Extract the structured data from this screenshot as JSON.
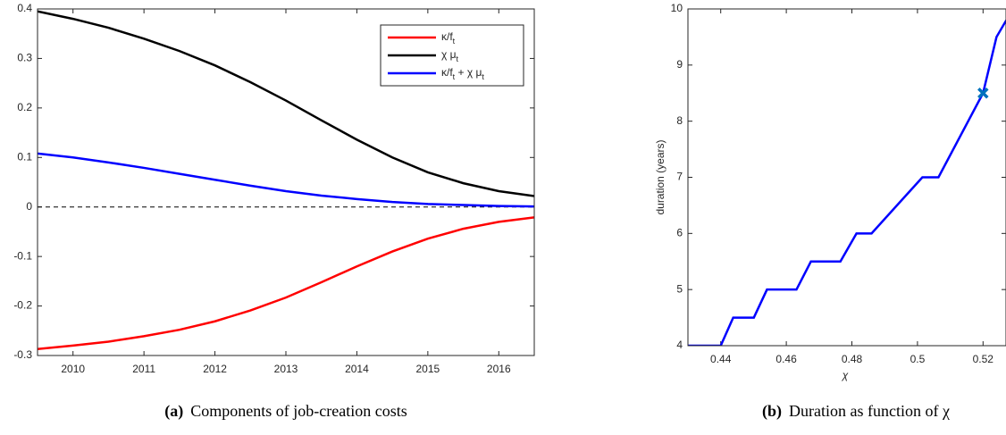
{
  "chart_data": [
    {
      "type": "line",
      "x": [
        2009.5,
        2010,
        2010.5,
        2011,
        2011.5,
        2012,
        2012.5,
        2013,
        2013.5,
        2014,
        2014.5,
        2015,
        2015.5,
        2016,
        2016.5
      ],
      "series": [
        {
          "name": "κ/f_t",
          "color": "#ff0000",
          "values": [
            -0.287,
            -0.28,
            -0.272,
            -0.261,
            -0.248,
            -0.231,
            -0.209,
            -0.183,
            -0.152,
            -0.12,
            -0.09,
            -0.064,
            -0.044,
            -0.03,
            -0.021
          ]
        },
        {
          "name": "χ μ_t",
          "color": "#000000",
          "values": [
            0.395,
            0.38,
            0.362,
            0.34,
            0.315,
            0.286,
            0.252,
            0.215,
            0.175,
            0.136,
            0.1,
            0.07,
            0.048,
            0.032,
            0.022
          ]
        },
        {
          "name": "κ/f_t + χ μ_t",
          "color": "#0000ff",
          "values": [
            0.108,
            0.1,
            0.09,
            0.079,
            0.067,
            0.055,
            0.043,
            0.032,
            0.023,
            0.016,
            0.01,
            0.006,
            0.004,
            0.002,
            0.001
          ]
        }
      ],
      "xlim": [
        2009.5,
        2016.5
      ],
      "xticks": [
        2010,
        2011,
        2012,
        2013,
        2014,
        2015,
        2016
      ],
      "ylim": [
        -0.3,
        0.4
      ],
      "yticks": [
        -0.3,
        -0.2,
        -0.1,
        0,
        0.1,
        0.2,
        0.3,
        0.4
      ],
      "reference_lines": [
        0
      ],
      "legend": "upper right",
      "caption_label": "(a)",
      "caption": "Components of job-creation costs"
    },
    {
      "type": "line",
      "x": [
        0.43,
        0.44,
        0.4438,
        0.4501,
        0.4541,
        0.4631,
        0.4675,
        0.4765,
        0.4814,
        0.486,
        0.5015,
        0.5064,
        0.52,
        0.5241,
        0.5271
      ],
      "series": [
        {
          "color": "#0000ff",
          "values": [
            4,
            4,
            4.5,
            4.5,
            5,
            5,
            5.5,
            5.5,
            6,
            6,
            7,
            7,
            8.5,
            9.5,
            9.8
          ]
        }
      ],
      "markers": [
        {
          "x": 0.52,
          "y": 8.5,
          "color": "#0072bd"
        }
      ],
      "xlim": [
        0.43,
        0.527
      ],
      "xticks": [
        0.44,
        0.46,
        0.48,
        0.5,
        0.52
      ],
      "ylim": [
        4,
        10
      ],
      "yticks": [
        4,
        5,
        6,
        7,
        8,
        9,
        10
      ],
      "xlabel": "χ",
      "ylabel": "duration (years)",
      "caption_label": "(b)",
      "caption": "Duration as function of χ"
    }
  ]
}
